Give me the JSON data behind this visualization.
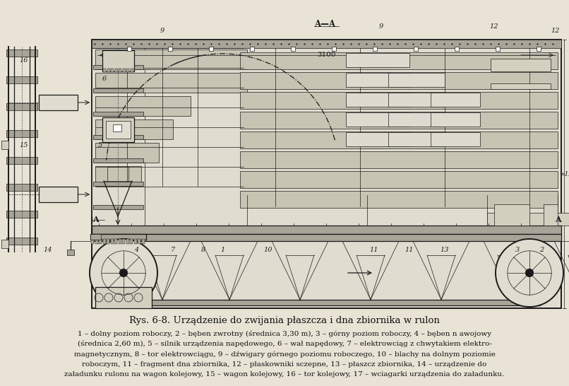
{
  "bg_color": "#e8e3d5",
  "line_color": "#1a1a1a",
  "title": "Rys. 6-8. Urządzenie do zwijania płaszcza i dna zbiornika w rulon",
  "caption_line1": "1 – dolny poziom roboczy, 2 – bęben zwrotny (średnica 3,30 m), 3 – górny poziom roboczy, 4 – bęben n awojowy",
  "caption_line2": "(średnica 2,60 m), 5 – silnik urządzenia napędowego, 6 – wał napędowy, 7 – elektrowciąg z chwytakiem elektro-",
  "caption_line3": "magnetycznym, 8 – tor elektrowciągu, 9 – dźwigary górnego poziomu roboczego, 10 – blachy na dolnym poziomie",
  "caption_line4": "roboczym, 11 – fragment dna zbiornika, 12 – płaskowniki sczepne, 13 – płaszcz zbiornika, 14 – urządzenie do",
  "caption_line5": "załadunku rulonu na wagon kolejowy, 15 – wagon kolejowy, 16 – tor kolejowy, 17 – wciagarki urządzenia do załadunku."
}
